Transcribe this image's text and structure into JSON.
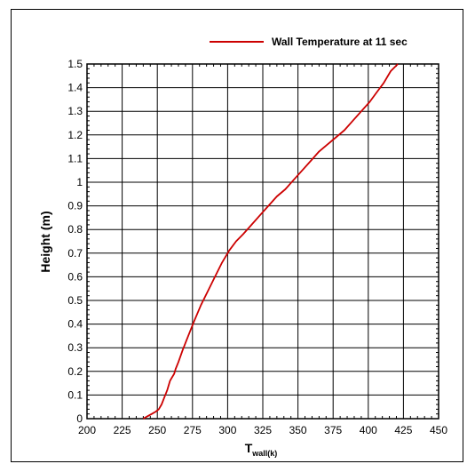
{
  "chart_data": {
    "type": "line",
    "title": "",
    "xlabel_main": "T",
    "xlabel_sub": "wall(k)",
    "ylabel": "Height (m)",
    "xlim": [
      200,
      450
    ],
    "ylim": [
      0,
      1.5
    ],
    "x_ticks": [
      "200",
      "225",
      "250",
      "275",
      "300",
      "325",
      "350",
      "375",
      "400",
      "425",
      "450"
    ],
    "y_ticks": [
      "0",
      "0.1",
      "0.2",
      "0.3",
      "0.4",
      "0.5",
      "0.6",
      "0.7",
      "0.8",
      "0.9",
      "1",
      "1.1",
      "1.2",
      "1.3",
      "1.4",
      "1.5"
    ],
    "grid": true,
    "legend_position": "top-right",
    "series": [
      {
        "name": "Wall Temperature at 11 sec",
        "color": "#cc0000",
        "x": [
          240,
          243,
          246,
          249,
          251,
          253,
          255,
          257,
          259,
          260,
          262,
          263,
          265,
          268,
          272,
          276,
          281,
          286,
          291,
          296,
          301,
          306,
          311,
          317,
          323,
          329,
          335,
          341,
          347,
          353,
          359,
          365,
          371,
          377,
          383,
          389,
          395,
          401,
          406,
          411,
          416,
          421
        ],
        "y": [
          0.0,
          0.01,
          0.02,
          0.03,
          0.04,
          0.06,
          0.09,
          0.12,
          0.16,
          0.17,
          0.19,
          0.21,
          0.24,
          0.29,
          0.35,
          0.41,
          0.48,
          0.54,
          0.6,
          0.66,
          0.71,
          0.75,
          0.78,
          0.82,
          0.86,
          0.9,
          0.94,
          0.97,
          1.01,
          1.05,
          1.09,
          1.13,
          1.16,
          1.19,
          1.22,
          1.26,
          1.3,
          1.34,
          1.38,
          1.42,
          1.47,
          1.5
        ]
      }
    ]
  }
}
